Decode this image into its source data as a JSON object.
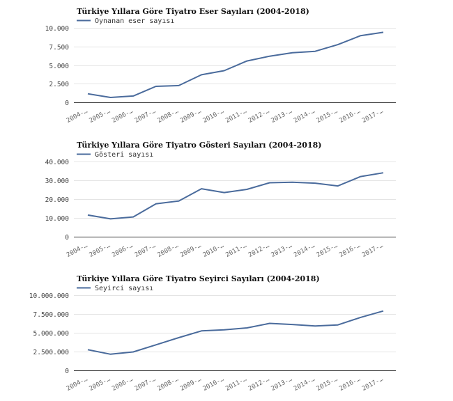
{
  "colors": {
    "series": "#4a6b9c",
    "grid": "#e4e4e4",
    "axis": "#333333"
  },
  "chart_data": [
    {
      "type": "line",
      "title": "Türkiye Yıllara Göre Tiyatro Eser Sayıları (2004-2018)",
      "categories": [
        "2004-…",
        "2005-…",
        "2006-…",
        "2007-…",
        "2008-…",
        "2009-…",
        "2010-…",
        "2011-…",
        "2012-…",
        "2013-…",
        "2014-…",
        "2015-…",
        "2016-…",
        "2017-…"
      ],
      "series": [
        {
          "name": "Oynanan eser sayısı",
          "values": [
            1150,
            650,
            850,
            2150,
            2250,
            3700,
            4250,
            5550,
            6200,
            6650,
            6850,
            7750,
            8950,
            9400
          ]
        }
      ],
      "yticks": [
        0,
        2500,
        5000,
        7500,
        10000
      ],
      "ytick_labels": [
        "0",
        "2.500",
        "5.000",
        "7.500",
        "10.000"
      ],
      "ylim": [
        0,
        10000
      ],
      "grid": true,
      "legend": "top-left"
    },
    {
      "type": "line",
      "title": "Türkiye Yıllara Göre Tiyatro Gösteri Sayıları (2004-2018)",
      "categories": [
        "2004-…",
        "2005-…",
        "2006-…",
        "2007-…",
        "2008-…",
        "2009-…",
        "2010-…",
        "2011-…",
        "2012-…",
        "2013-…",
        "2014-…",
        "2015-…",
        "2016-…",
        "2017-…"
      ],
      "series": [
        {
          "name": "Gösteri sayısı",
          "values": [
            11500,
            9500,
            10500,
            17500,
            19000,
            25500,
            23500,
            25200,
            28700,
            29000,
            28500,
            27000,
            32000,
            34000
          ]
        }
      ],
      "yticks": [
        0,
        10000,
        20000,
        30000,
        40000
      ],
      "ytick_labels": [
        "0",
        "10.000",
        "20.000",
        "30.000",
        "40.000"
      ],
      "ylim": [
        0,
        40000
      ],
      "grid": true,
      "legend": "top-left"
    },
    {
      "type": "line",
      "title": "Türkiye Yıllara Göre Tiyatro Seyirci Sayıları (2004-2018)",
      "categories": [
        "2004-…",
        "2005-…",
        "2006-…",
        "2007-…",
        "2008-…",
        "2009-…",
        "2010-…",
        "2011-…",
        "2012-…",
        "2013-…",
        "2014-…",
        "2015-…",
        "2016-…",
        "2017-…"
      ],
      "series": [
        {
          "name": "Seyirci sayısı",
          "values": [
            2750000,
            2150000,
            2450000,
            3400000,
            4350000,
            5250000,
            5400000,
            5650000,
            6250000,
            6100000,
            5900000,
            6050000,
            7050000,
            7900000
          ]
        }
      ],
      "yticks": [
        0,
        2500000,
        5000000,
        7500000,
        10000000
      ],
      "ytick_labels": [
        "0",
        "2.500.000",
        "5.000.000",
        "7.500.000",
        "10.000.000"
      ],
      "ylim": [
        0,
        10000000
      ],
      "grid": true,
      "legend": "top-left"
    }
  ]
}
